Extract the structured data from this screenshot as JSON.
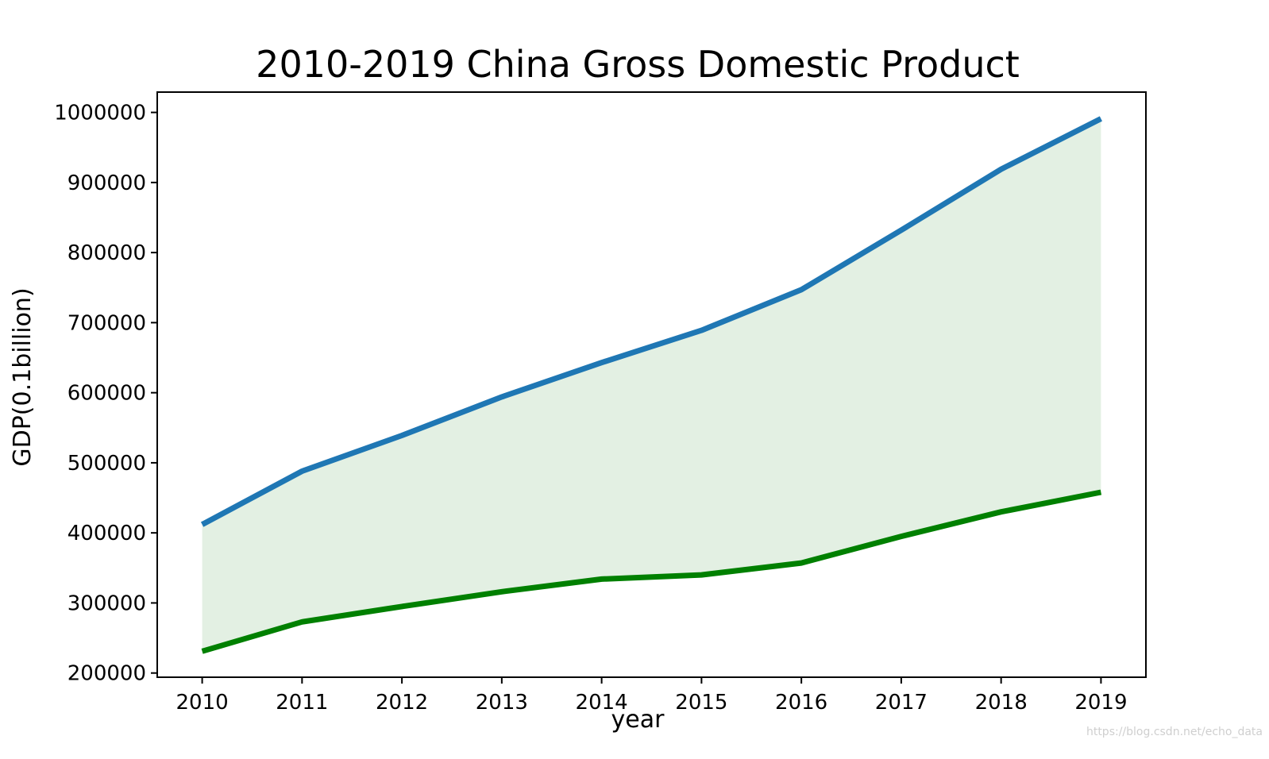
{
  "chart_data": {
    "type": "area",
    "title": "2010-2019 China Gross Domestic Product",
    "xlabel": "year",
    "ylabel": "GDP(0.1billion)",
    "x": [
      2010,
      2011,
      2012,
      2013,
      2014,
      2015,
      2016,
      2017,
      2018,
      2019
    ],
    "x_ticks": [
      "2010",
      "2011",
      "2012",
      "2013",
      "2014",
      "2015",
      "2016",
      "2017",
      "2018",
      "2019"
    ],
    "y_ticks": [
      "200000",
      "300000",
      "400000",
      "500000",
      "600000",
      "700000",
      "800000",
      "900000",
      "1000000"
    ],
    "xlim": [
      2009.55,
      2019.45
    ],
    "ylim": [
      194000,
      1029000
    ],
    "grid": false,
    "series": [
      {
        "color": "#1f77b4",
        "values": [
          412000,
          488000,
          539000,
          594000,
          643000,
          689000,
          747000,
          832000,
          919000,
          991000
        ]
      },
      {
        "color": "#008000",
        "values": [
          231000,
          273000,
          295000,
          316000,
          334000,
          340000,
          357000,
          395000,
          430000,
          458000
        ]
      }
    ],
    "fill_between": {
      "color": "#e3f0e3"
    }
  },
  "watermark": "https://blog.csdn.net/echo_data"
}
